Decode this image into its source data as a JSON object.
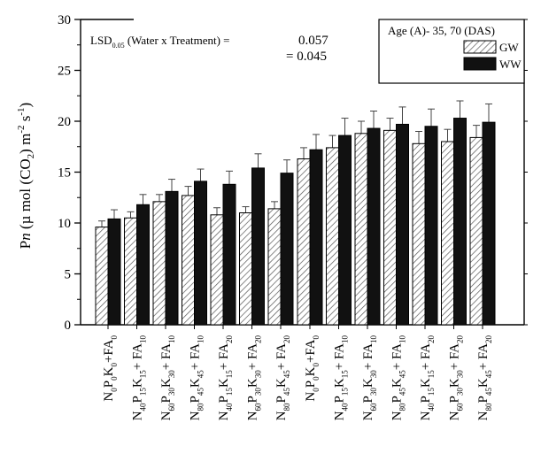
{
  "chart_data": {
    "type": "bar",
    "ylabel": "Pn (µ mol (CO2) m-2 s-1)",
    "ylabel_parts": {
      "italic": "n",
      "prefix": "P",
      "mid1": " (µ mol (CO",
      "sub1": "2",
      "mid2": ") m",
      "sup1": "-2",
      "mid3": " s",
      "sup2": "-1",
      "end": ")"
    },
    "ylim": [
      0,
      30
    ],
    "yticks": [
      "0",
      "5",
      "10",
      "15",
      "20",
      "25",
      "30"
    ],
    "annotation": {
      "lsd_label": "LSD",
      "lsd_sub": "0.05",
      "lsd_text": " (Water x Treatment) =",
      "value1": "0.057",
      "value2": "= 0.045"
    },
    "legend": {
      "title": "Age (A)- 35, 70 (DAS)",
      "placement": "top-right"
    },
    "series": [
      {
        "name": "GW",
        "values": [
          9.6,
          10.5,
          12.1,
          12.7,
          10.8,
          11.0,
          11.4,
          16.3,
          17.4,
          18.8,
          19.1,
          17.8,
          18.0,
          18.4
        ],
        "errors": [
          0.6,
          0.6,
          0.7,
          0.9,
          0.7,
          0.6,
          0.7,
          1.1,
          1.2,
          1.2,
          1.2,
          1.2,
          1.2,
          1.2
        ]
      },
      {
        "name": "WW",
        "values": [
          10.4,
          11.8,
          13.1,
          14.1,
          13.8,
          15.4,
          14.9,
          17.2,
          18.6,
          19.3,
          19.7,
          19.5,
          20.3,
          19.9
        ],
        "errors": [
          0.9,
          1.0,
          1.2,
          1.2,
          1.3,
          1.4,
          1.3,
          1.5,
          1.7,
          1.7,
          1.7,
          1.7,
          1.7,
          1.8
        ]
      }
    ],
    "categories": [
      {
        "main": "N",
        "s1": "0",
        "p": "P",
        "s2": "0",
        "k": "K",
        "s3": "0",
        "fa": "+FA",
        "s4": "0"
      },
      {
        "main": "N",
        "s1": "40",
        "p": "P",
        "s2": "15",
        "k": "K",
        "s3": "15",
        "fa": "+ FA",
        "s4": "10"
      },
      {
        "main": "N",
        "s1": "60",
        "p": "P",
        "s2": "30",
        "k": "K",
        "s3": "30",
        "fa": "+ FA",
        "s4": "10"
      },
      {
        "main": "N",
        "s1": "80",
        "p": "P",
        "s2": "45",
        "k": "K",
        "s3": "45",
        "fa": "+ FA",
        "s4": "10"
      },
      {
        "main": "N",
        "s1": "40",
        "p": "P",
        "s2": "15",
        "k": "K",
        "s3": "15",
        "fa": "+ FA",
        "s4": "20"
      },
      {
        "main": "N",
        "s1": "60",
        "p": "P",
        "s2": "30",
        "k": "K",
        "s3": "30",
        "fa": "+ FA",
        "s4": "20"
      },
      {
        "main": "N",
        "s1": "80",
        "p": "P",
        "s2": "45",
        "k": "K",
        "s3": "45",
        "fa": "+ FA",
        "s4": "20"
      },
      {
        "main": "N",
        "s1": "0",
        "p": "P",
        "s2": "0",
        "k": "K",
        "s3": "0",
        "fa": "+FA",
        "s4": "0"
      },
      {
        "main": "N",
        "s1": "40",
        "p": "P",
        "s2": "15",
        "k": "K",
        "s3": "15",
        "fa": "+ FA",
        "s4": "10"
      },
      {
        "main": "N",
        "s1": "60",
        "p": "P",
        "s2": "30",
        "k": "K",
        "s3": "30",
        "fa": "+ FA",
        "s4": "10"
      },
      {
        "main": "N",
        "s1": "80",
        "p": "P",
        "s2": "45",
        "k": "K",
        "s3": "45",
        "fa": "+ FA",
        "s4": "10"
      },
      {
        "main": "N",
        "s1": "40",
        "p": "P",
        "s2": "15",
        "k": "K",
        "s3": "15",
        "fa": "+ FA",
        "s4": "20"
      },
      {
        "main": "N",
        "s1": "60",
        "p": "P",
        "s2": "30",
        "k": "K",
        "s3": "30",
        "fa": "+ FA",
        "s4": "20"
      },
      {
        "main": "N",
        "s1": "80",
        "p": "P",
        "s2": "45",
        "k": "K",
        "s3": "45",
        "fa": "+ FA",
        "s4": "20"
      }
    ],
    "groups": 2,
    "grid": false,
    "colors": {
      "GW": "#ffffff",
      "WW": "#111111",
      "hatch": "#555555",
      "axis": "#000000"
    }
  }
}
